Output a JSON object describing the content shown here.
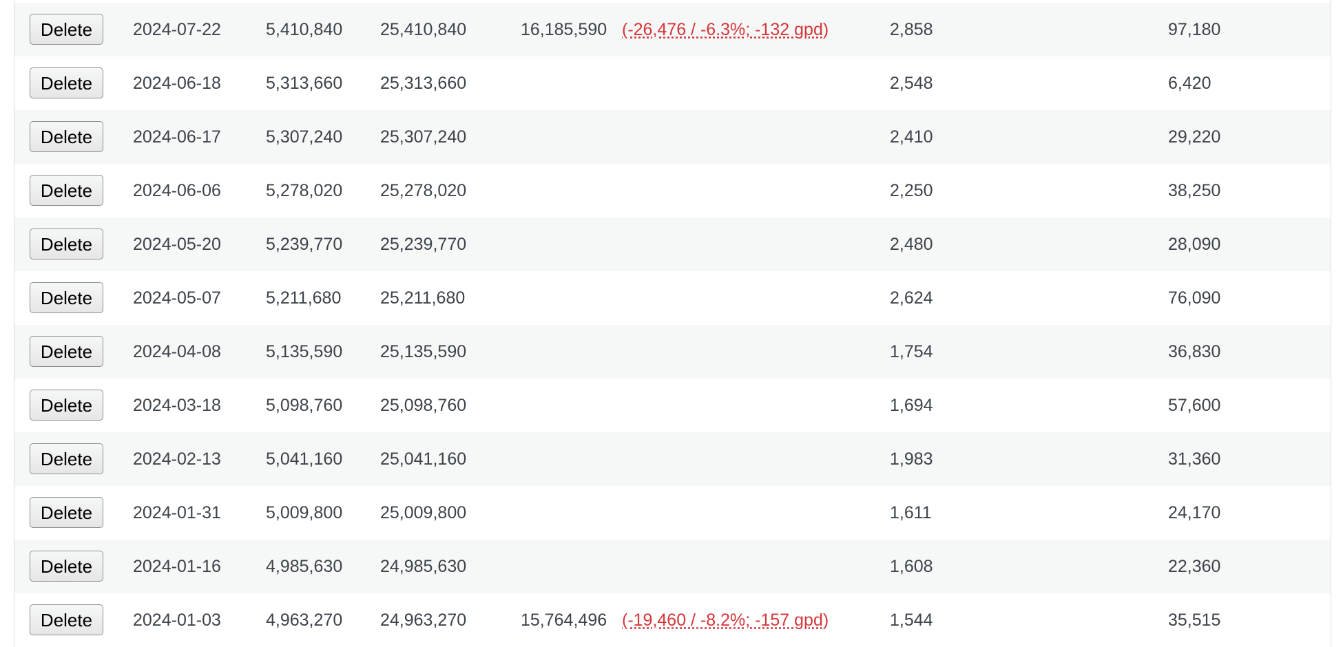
{
  "table": {
    "rows": [
      {
        "action": "Delete",
        "date": "2024-07-22",
        "col1": "5,410,840",
        "col2": "25,410,840",
        "col3": "16,185,590",
        "note": "(-26,476 / -6.3%; -132 gpd)",
        "col4": "2,858",
        "col5": "97,180"
      },
      {
        "action": "Delete",
        "date": "2024-06-18",
        "col1": "5,313,660",
        "col2": "25,313,660",
        "col4": "2,548",
        "col5": "6,420"
      },
      {
        "action": "Delete",
        "date": "2024-06-17",
        "col1": "5,307,240",
        "col2": "25,307,240",
        "col4": "2,410",
        "col5": "29,220"
      },
      {
        "action": "Delete",
        "date": "2024-06-06",
        "col1": "5,278,020",
        "col2": "25,278,020",
        "col4": "2,250",
        "col5": "38,250"
      },
      {
        "action": "Delete",
        "date": "2024-05-20",
        "col1": "5,239,770",
        "col2": "25,239,770",
        "col4": "2,480",
        "col5": "28,090"
      },
      {
        "action": "Delete",
        "date": "2024-05-07",
        "col1": "5,211,680",
        "col2": "25,211,680",
        "col4": "2,624",
        "col5": "76,090"
      },
      {
        "action": "Delete",
        "date": "2024-04-08",
        "col1": "5,135,590",
        "col2": "25,135,590",
        "col4": "1,754",
        "col5": "36,830"
      },
      {
        "action": "Delete",
        "date": "2024-03-18",
        "col1": "5,098,760",
        "col2": "25,098,760",
        "col4": "1,694",
        "col5": "57,600"
      },
      {
        "action": "Delete",
        "date": "2024-02-13",
        "col1": "5,041,160",
        "col2": "25,041,160",
        "col4": "1,983",
        "col5": "31,360"
      },
      {
        "action": "Delete",
        "date": "2024-01-31",
        "col1": "5,009,800",
        "col2": "25,009,800",
        "col4": "1,611",
        "col5": "24,170"
      },
      {
        "action": "Delete",
        "date": "2024-01-16",
        "col1": "4,985,630",
        "col2": "24,985,630",
        "col4": "1,608",
        "col5": "22,360"
      },
      {
        "action": "Delete",
        "date": "2024-01-03",
        "col1": "4,963,270",
        "col2": "24,963,270",
        "col3": "15,764,496",
        "note": "(-19,460 / -8.2%; -157 gpd)",
        "col4": "1,544",
        "col5": "35,515"
      }
    ]
  }
}
